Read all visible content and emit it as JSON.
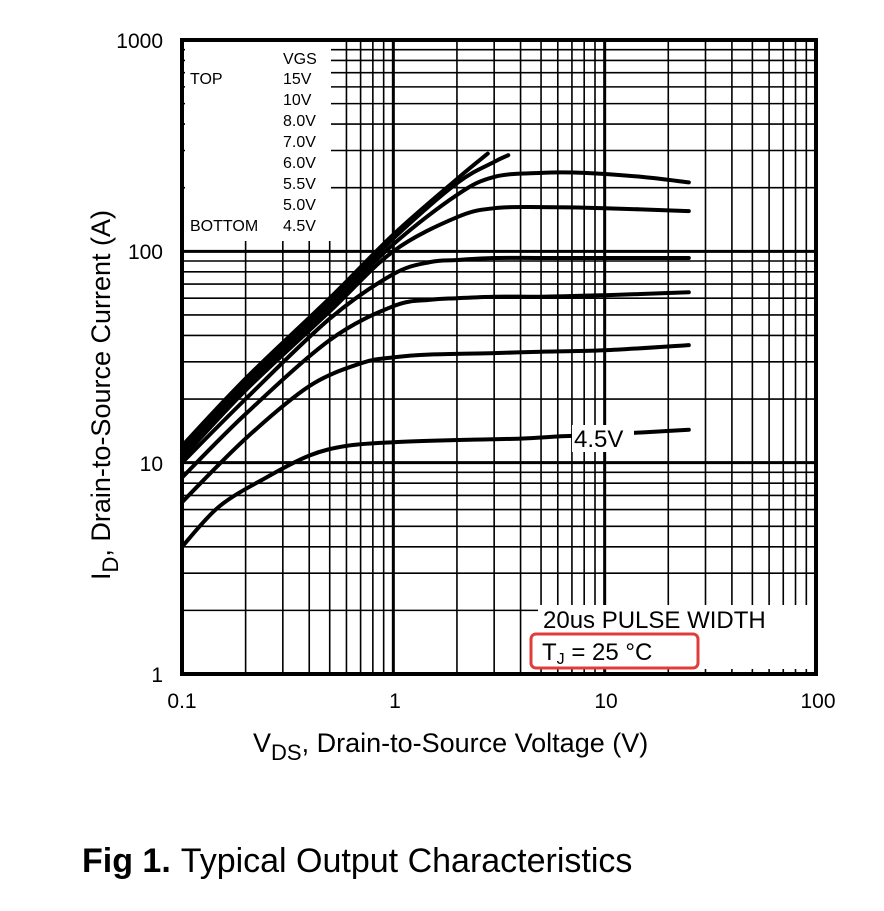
{
  "chart_data": {
    "type": "line",
    "title": "",
    "xlabel_main": "V",
    "xlabel_sub": "DS",
    "xlabel_rest": ", Drain-to-Source Voltage (V)",
    "ylabel_main": "I",
    "ylabel_sub": "D",
    "ylabel_rest": ",  Drain-to-Source Current (A)",
    "x_scale": "log",
    "y_scale": "log",
    "xlim": [
      0.1,
      100
    ],
    "ylim": [
      1,
      1000
    ],
    "x_tick_labels": [
      "0.1",
      "1",
      "10",
      "100"
    ],
    "y_tick_labels": [
      "1",
      "10",
      "100",
      "1000"
    ],
    "grid": true,
    "legend": {
      "placement": "top-left",
      "header": "VGS",
      "top_label": "TOP",
      "bottom_label": "BOTTOM",
      "entries": [
        "15V",
        "10V",
        "8.0V",
        "7.0V",
        "6.0V",
        "5.5V",
        "5.0V",
        "4.5V"
      ]
    },
    "annotations": {
      "curve_label": "4.5V",
      "pulse_note": "20us PULSE WIDTH",
      "tj_main": "T",
      "tj_sub": "J",
      "tj_rest": " = 25 °C",
      "tj_box_color": "#e03c3c"
    },
    "series": [
      {
        "name": "15V",
        "x": [
          0.1,
          0.2,
          0.5,
          1.0,
          2.0,
          2.8
        ],
        "y": [
          12,
          25,
          60,
          120,
          220,
          290
        ]
      },
      {
        "name": "10V",
        "x": [
          0.1,
          0.2,
          0.5,
          1.0,
          2.0,
          3.0,
          3.5
        ],
        "y": [
          11.5,
          24,
          58,
          115,
          210,
          265,
          285
        ]
      },
      {
        "name": "8.0V",
        "x": [
          0.1,
          0.2,
          0.5,
          1.0,
          2.0,
          3.0,
          5.0,
          8.0,
          15.0,
          25.0
        ],
        "y": [
          11,
          23,
          55,
          108,
          185,
          225,
          235,
          235,
          225,
          212
        ]
      },
      {
        "name": "7.0V",
        "x": [
          0.1,
          0.2,
          0.5,
          1.0,
          2.0,
          3.0,
          5.0,
          10.0,
          25.0
        ],
        "y": [
          10.5,
          22,
          52,
          100,
          145,
          160,
          162,
          160,
          155
        ]
      },
      {
        "name": "6.0V",
        "x": [
          0.1,
          0.2,
          0.5,
          1.0,
          1.5,
          2.0,
          3.0,
          5.0,
          10.0,
          25.0
        ],
        "y": [
          10,
          20,
          48,
          78,
          89,
          91,
          93,
          93,
          93,
          93
        ]
      },
      {
        "name": "5.5V",
        "x": [
          0.1,
          0.2,
          0.5,
          1.0,
          1.5,
          2.0,
          3.0,
          5.0,
          10.0,
          25.0
        ],
        "y": [
          8.5,
          17,
          38,
          55,
          59,
          60,
          61,
          61,
          62,
          64
        ]
      },
      {
        "name": "5.0V",
        "x": [
          0.1,
          0.2,
          0.4,
          0.7,
          1.0,
          1.5,
          3.0,
          5.0,
          10.0,
          25.0
        ],
        "y": [
          6.5,
          13,
          23,
          29.5,
          31.5,
          32.5,
          33,
          33.5,
          34,
          36
        ]
      },
      {
        "name": "4.5V",
        "x": [
          0.1,
          0.15,
          0.25,
          0.4,
          0.6,
          1.0,
          2.0,
          4.0,
          6.0,
          10.0,
          25.0
        ],
        "y": [
          4,
          6.2,
          8.5,
          10.8,
          12,
          12.5,
          12.8,
          13,
          13.3,
          13.6,
          14.3
        ]
      }
    ]
  },
  "caption": {
    "fig": "Fig 1.",
    "text": "Typical Output Characteristics"
  }
}
